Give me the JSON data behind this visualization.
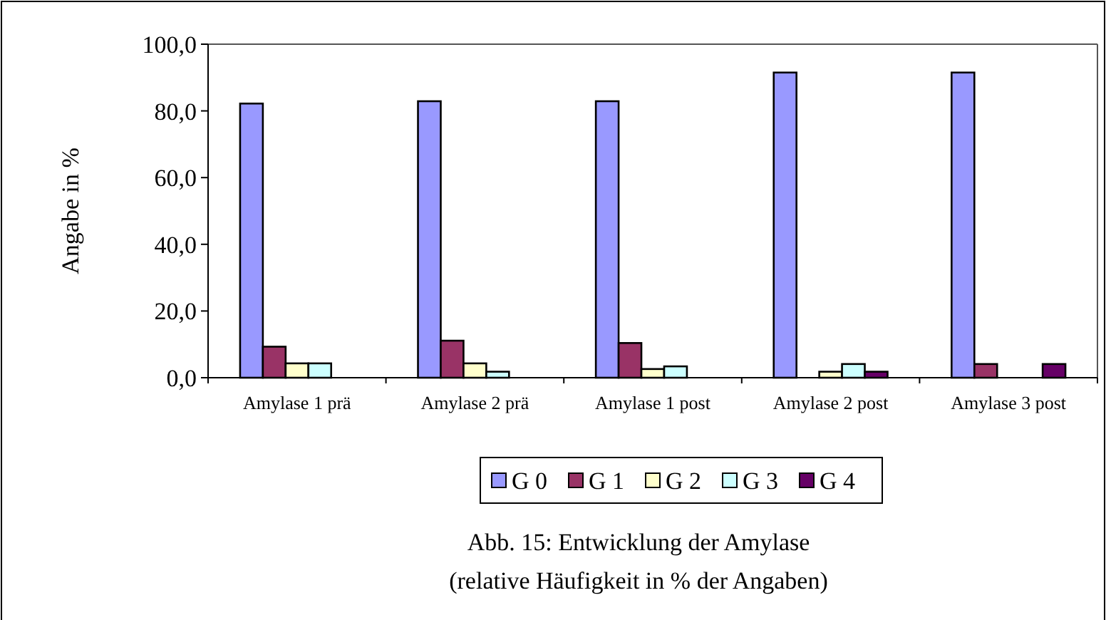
{
  "chart_data": {
    "type": "bar",
    "title": "Abb. 15: Entwicklung der Amylase",
    "subtitle": "(relative Häufigkeit in % der Angaben)",
    "ylabel": "Angabe in %",
    "categories": [
      "Amylase 1 prä",
      "Amylase 2 prä",
      "Amylase 1 post",
      "Amylase 2 post",
      "Amylase 3 post"
    ],
    "series": [
      {
        "name": "G 0",
        "color": "#9999ff",
        "values": [
          82.2,
          82.9,
          82.9,
          91.5,
          91.5
        ]
      },
      {
        "name": "G 1",
        "color": "#993366",
        "values": [
          9.3,
          11.1,
          10.4,
          0,
          4.1
        ]
      },
      {
        "name": "G 2",
        "color": "#ffffcc",
        "values": [
          4.3,
          4.3,
          2.6,
          1.8,
          0
        ]
      },
      {
        "name": "G 3",
        "color": "#ccffff",
        "values": [
          4.3,
          1.8,
          3.4,
          4.1,
          0
        ]
      },
      {
        "name": "G 4",
        "color": "#660066",
        "values": [
          0,
          0,
          0,
          1.8,
          4.1
        ]
      }
    ],
    "ylim": [
      0,
      100
    ],
    "yticks": [
      {
        "value": 0,
        "label": "0,0"
      },
      {
        "value": 20,
        "label": "20,0"
      },
      {
        "value": 40,
        "label": "40,0"
      },
      {
        "value": 60,
        "label": "60,0"
      },
      {
        "value": 80,
        "label": "80,0"
      },
      {
        "value": 100,
        "label": "100,0"
      }
    ],
    "grid": false,
    "legend": "bottom"
  }
}
